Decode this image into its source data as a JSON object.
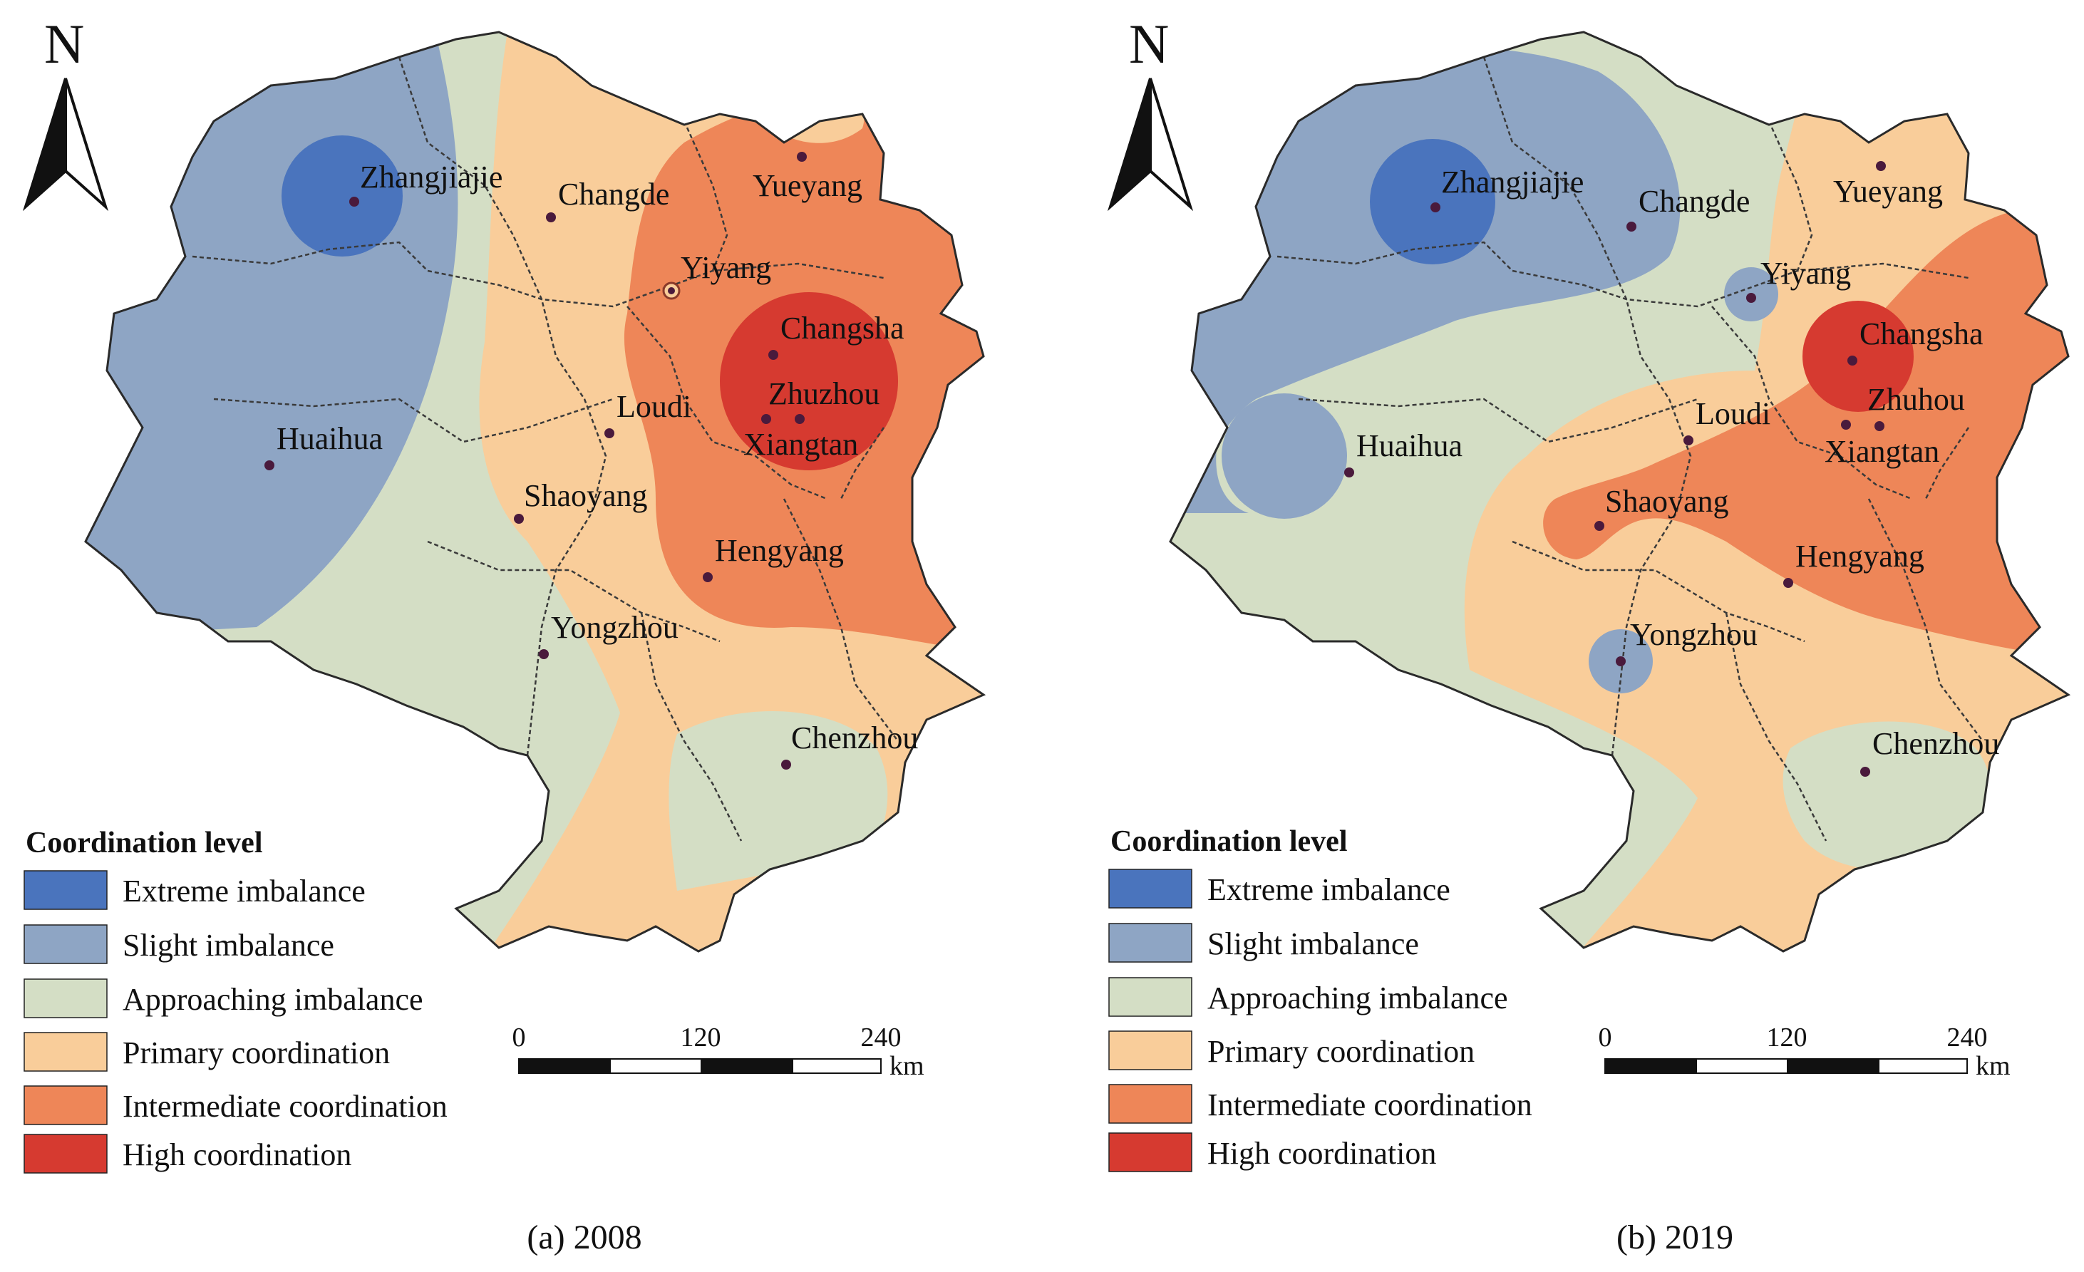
{
  "colors": {
    "extreme": "#4a74bd",
    "slight": "#8ea5c4",
    "approaching": "#d4dec5",
    "primary": "#f9cd9a",
    "intermediate": "#ee8658",
    "high": "#d63a30",
    "city_dot": "#4a1a3c",
    "boundary": "#3a3a3a"
  },
  "north_label": "N",
  "legend": {
    "title": "Coordination level",
    "items": [
      {
        "key": "extreme",
        "label": "Extreme imbalance"
      },
      {
        "key": "slight",
        "label": "Slight imbalance"
      },
      {
        "key": "approaching",
        "label": "Approaching imbalance"
      },
      {
        "key": "primary",
        "label": "Primary coordination"
      },
      {
        "key": "intermediate",
        "label": "Intermediate coordination"
      },
      {
        "key": "high",
        "label": "High coordination"
      }
    ]
  },
  "scale_bar": {
    "ticks": [
      "0",
      "120",
      "240"
    ],
    "unit": "km"
  },
  "panels": [
    {
      "caption": "(a) 2008",
      "cities": [
        {
          "name": "Zhangjiajie",
          "level": "extreme"
        },
        {
          "name": "Changde",
          "level": "primary"
        },
        {
          "name": "Yueyang",
          "level": "primary"
        },
        {
          "name": "Yiyang",
          "level": "intermediate"
        },
        {
          "name": "Changsha",
          "level": "high"
        },
        {
          "name": "Zhuzhou",
          "level": "high"
        },
        {
          "name": "Loudi",
          "level": "primary"
        },
        {
          "name": "Xiangtan",
          "level": "high"
        },
        {
          "name": "Huaihua",
          "level": "slight"
        },
        {
          "name": "Shaoyang",
          "level": "approaching"
        },
        {
          "name": "Hengyang",
          "level": "intermediate"
        },
        {
          "name": "Yongzhou",
          "level": "approaching"
        },
        {
          "name": "Chenzhou",
          "level": "approaching"
        }
      ]
    },
    {
      "caption": "(b) 2019",
      "cities": [
        {
          "name": "Zhangjiajie",
          "level": "extreme"
        },
        {
          "name": "Changde",
          "level": "slight"
        },
        {
          "name": "Yueyang",
          "level": "primary"
        },
        {
          "name": "Yiyang",
          "level": "slight"
        },
        {
          "name": "Changsha",
          "level": "high"
        },
        {
          "name": "Zhuhou",
          "level": "intermediate"
        },
        {
          "name": "Loudi",
          "level": "intermediate"
        },
        {
          "name": "Xiangtan",
          "level": "intermediate"
        },
        {
          "name": "Huaihua",
          "level": "slight"
        },
        {
          "name": "Shaoyang",
          "level": "intermediate"
        },
        {
          "name": "Hengyang",
          "level": "intermediate"
        },
        {
          "name": "Yongzhou",
          "level": "slight"
        },
        {
          "name": "Chenzhou",
          "level": "approaching"
        }
      ]
    }
  ]
}
